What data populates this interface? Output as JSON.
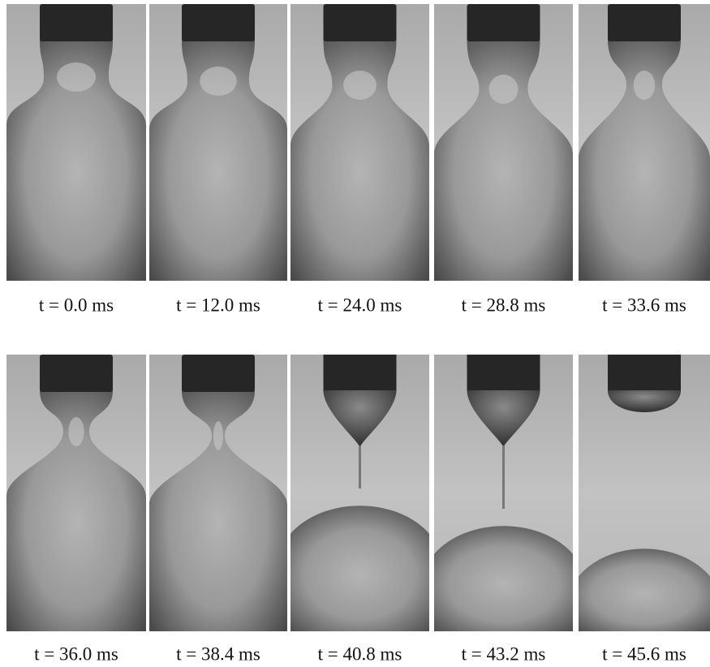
{
  "rows": [
    {
      "panels": [
        {
          "label": "t = 0.0 ms"
        },
        {
          "label": "t = 12.0 ms"
        },
        {
          "label": "t = 24.0 ms"
        },
        {
          "label": "t = 28.8 ms"
        },
        {
          "label": "t = 33.6 ms"
        }
      ]
    },
    {
      "panels": [
        {
          "label": "t = 36.0 ms"
        },
        {
          "label": "t = 38.4 ms"
        },
        {
          "label": "t = 40.8 ms"
        },
        {
          "label": "t = 43.2 ms"
        },
        {
          "label": "t = 45.6 ms"
        }
      ]
    }
  ]
}
